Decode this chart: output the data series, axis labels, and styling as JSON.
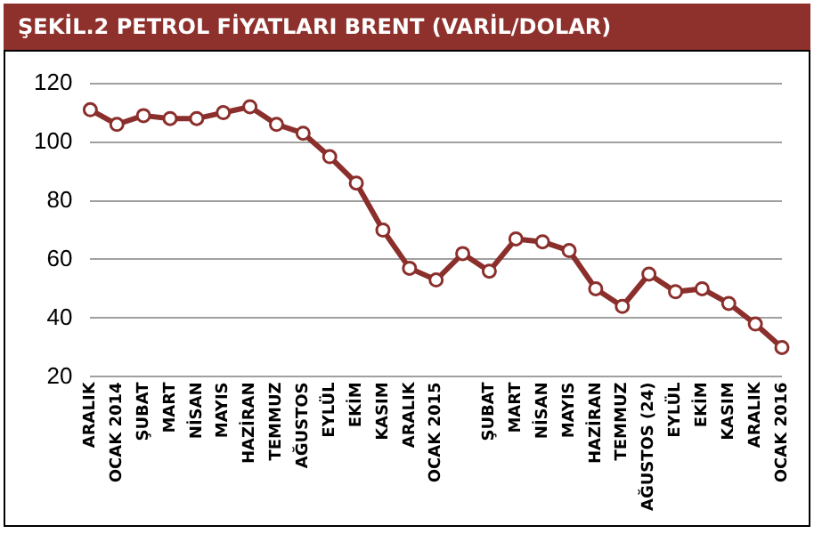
{
  "chart_data": {
    "type": "line",
    "title": "ŞEKİL.2 PETROL FİYATLARI BRENT (VARİL/DOLAR)",
    "categories": [
      "ARALIK",
      "OCAK 2014",
      "ŞUBAT",
      "MART",
      "NİSAN",
      "MAYIS",
      "HAZİRAN",
      "TEMMUZ",
      "AĞUSTOS",
      "EYLÜL",
      "EKİM",
      "KASIM",
      "ARALIK",
      "OCAK 2015",
      null,
      "ŞUBAT",
      "MART",
      "NİSAN",
      "MAYIS",
      "HAZİRAN",
      "TEMMUZ",
      "AĞUSTOS (24)",
      "EYLÜL",
      "EKİM",
      "KASIM",
      "ARALIK",
      "OCAK 2016"
    ],
    "series": [
      {
        "color": "#8b2f2c",
        "values": [
          111,
          106,
          109,
          108,
          108,
          110,
          112,
          106,
          103,
          95,
          86,
          70,
          57,
          53,
          62,
          56,
          67,
          66,
          63,
          50,
          44,
          55,
          49,
          50,
          45,
          38,
          30
        ]
      }
    ],
    "ylim": [
      20,
      120
    ],
    "yticks": [
      20,
      40,
      60,
      80,
      100,
      120
    ],
    "grid": "y",
    "legend": false,
    "marker": "circle",
    "line_style": "solid"
  }
}
